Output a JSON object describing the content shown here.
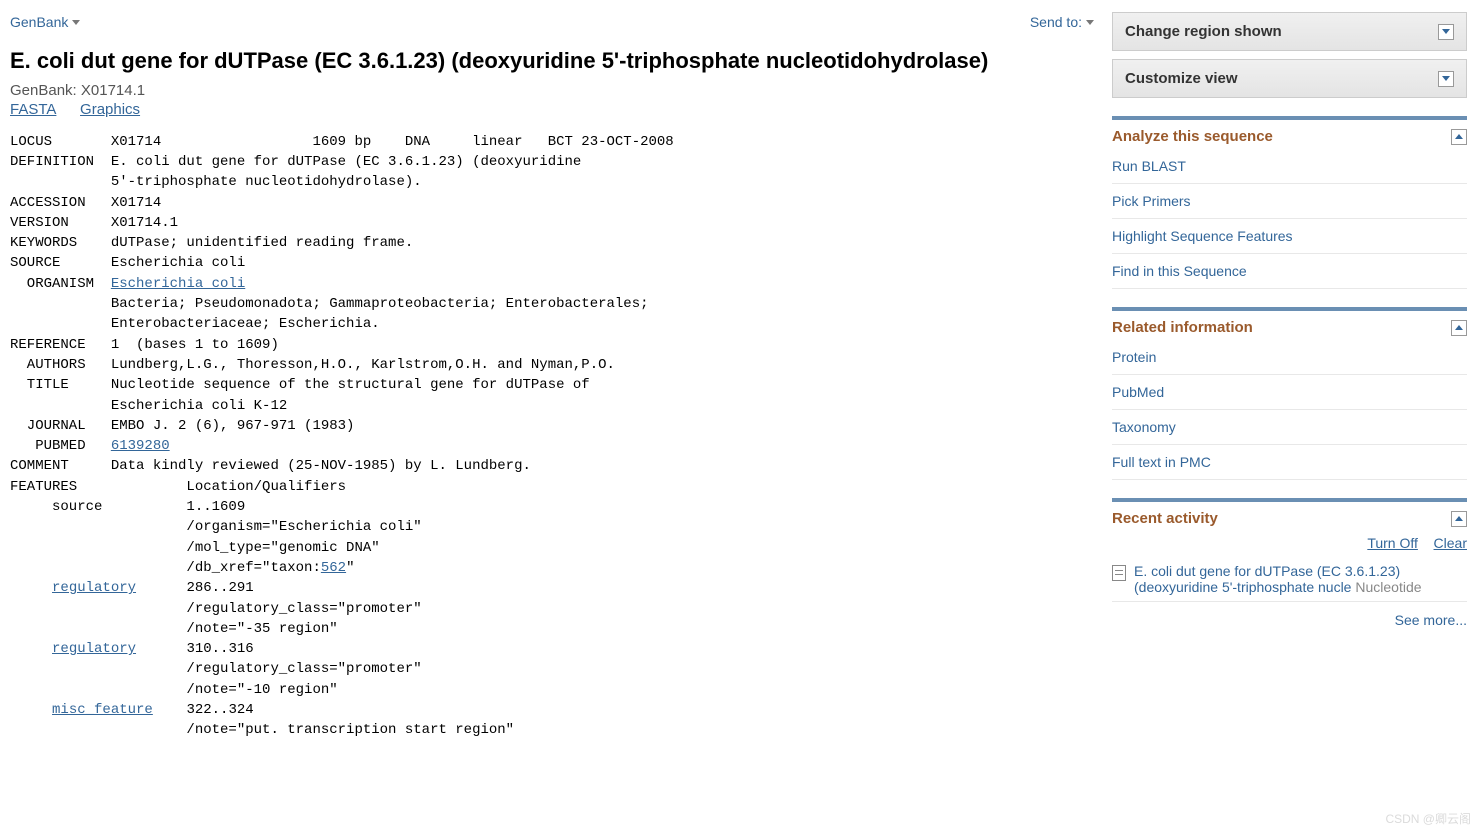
{
  "topbar": {
    "format_label": "GenBank",
    "sendto_label": "Send to:"
  },
  "header": {
    "title": "E. coli dut gene for dUTPase (EC 3.6.1.23) (deoxyuridine 5'-triphosphate nucleotidohydrolase)",
    "accession_line": "GenBank: X01714.1",
    "view_links": {
      "fasta": "FASTA",
      "graphics": "Graphics"
    }
  },
  "record": {
    "locus": "LOCUS       X01714                  1609 bp    DNA     linear   BCT 23-OCT-2008",
    "def1": "DEFINITION  E. coli dut gene for dUTPase (EC 3.6.1.23) (deoxyuridine",
    "def2": "            5'-triphosphate nucleotidohydrolase).",
    "accession": "ACCESSION   X01714",
    "version": "VERSION     X01714.1",
    "keywords": "KEYWORDS    dUTPase; unidentified reading frame.",
    "source": "SOURCE      Escherichia coli",
    "organism_k": "  ORGANISM  ",
    "organism_v": "Escherichia coli",
    "tax1": "            Bacteria; Pseudomonadota; Gammaproteobacteria; Enterobacterales;",
    "tax2": "            Enterobacteriaceae; Escherichia.",
    "reference": "REFERENCE   1  (bases 1 to 1609)",
    "authors": "  AUTHORS   Lundberg,L.G., Thoresson,H.O., Karlstrom,O.H. and Nyman,P.O.",
    "title1": "  TITLE     Nucleotide sequence of the structural gene for dUTPase of",
    "title2": "            Escherichia coli K-12",
    "journal": "  JOURNAL   EMBO J. 2 (6), 967-971 (1983)",
    "pubmed_k": "   PUBMED   ",
    "pubmed_v": "6139280",
    "comment": "COMMENT     Data kindly reviewed (25-NOV-1985) by L. Lundberg.",
    "features": "FEATURES             Location/Qualifiers",
    "f_source": "     source          1..1609",
    "f_src_org": "                     /organism=\"Escherichia coli\"",
    "f_src_mol": "                     /mol_type=\"genomic DNA\"",
    "f_src_db1": "                     /db_xref=\"taxon:",
    "f_src_taxon": "562",
    "f_src_db2": "\"",
    "f_reg1_pad": "     ",
    "f_reg1_key": "regulatory",
    "f_reg1_loc": "      286..291",
    "f_reg1_cls": "                     /regulatory_class=\"promoter\"",
    "f_reg1_nt": "                     /note=\"-35 region\"",
    "f_reg2_pad": "     ",
    "f_reg2_key": "regulatory",
    "f_reg2_loc": "      310..316",
    "f_reg2_cls": "                     /regulatory_class=\"promoter\"",
    "f_reg2_nt": "                     /note=\"-10 region\"",
    "f_misc_pad": "     ",
    "f_misc_key": "misc_feature",
    "f_misc_loc": "    322..324",
    "f_misc_nt": "                     /note=\"put. transcription start region\""
  },
  "sidebar": {
    "panels": {
      "change_region": "Change region shown",
      "customize_view": "Customize view"
    },
    "analyze": {
      "title": "Analyze this sequence",
      "items": [
        "Run BLAST",
        "Pick Primers",
        "Highlight Sequence Features",
        "Find in this Sequence"
      ]
    },
    "related": {
      "title": "Related information",
      "items": [
        "Protein",
        "PubMed",
        "Taxonomy",
        "Full text in PMC"
      ]
    },
    "recent": {
      "title": "Recent activity",
      "turn_off": "Turn Off",
      "clear": "Clear",
      "item_text": "E. coli dut gene for dUTPase (EC 3.6.1.23) (deoxyuridine 5'-triphosphate nucle",
      "item_db": "Nucleotide",
      "see_more": "See more..."
    }
  },
  "watermark": "CSDN @卿云阁"
}
